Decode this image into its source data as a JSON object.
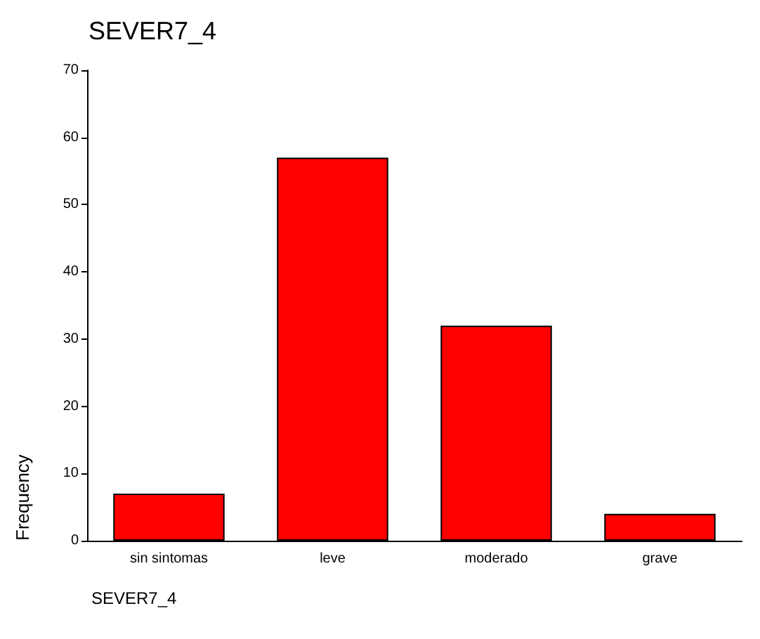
{
  "chart_data": {
    "type": "bar",
    "title": "SEVER7_4",
    "xlabel": "SEVER7_4",
    "ylabel": "Frequency",
    "categories": [
      "sin sintomas",
      "leve",
      "moderado",
      "grave"
    ],
    "values": [
      7,
      57,
      32,
      4
    ],
    "color": "#ff0000",
    "ylim": [
      0,
      70
    ],
    "yticks": [
      0,
      10,
      20,
      30,
      40,
      50,
      60,
      70
    ],
    "grid": false
  }
}
